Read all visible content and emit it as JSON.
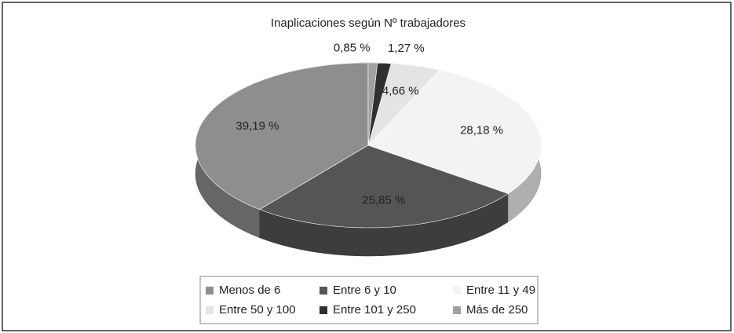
{
  "chart_data": {
    "type": "pie3d",
    "title": "Inaplicaciones según Nº trabajadores",
    "categories": [
      "Menos de 6",
      "Entre 6 y 10",
      "Entre 11 y 49",
      "Entre 50 y 100",
      "Entre 101 y 250",
      "Más de 250"
    ],
    "values": [
      39.19,
      25.85,
      28.18,
      4.66,
      1.27,
      0.85
    ],
    "value_labels": [
      "39,19 %",
      "25,85 %",
      "28,18 %",
      "4,66 %",
      "1,27 %",
      "0,85 %"
    ],
    "colors": [
      "#8e8e8e",
      "#555555",
      "#f3f3f3",
      "#e4e4e4",
      "#303030",
      "#a0a0a0"
    ],
    "legend": "bottom"
  }
}
